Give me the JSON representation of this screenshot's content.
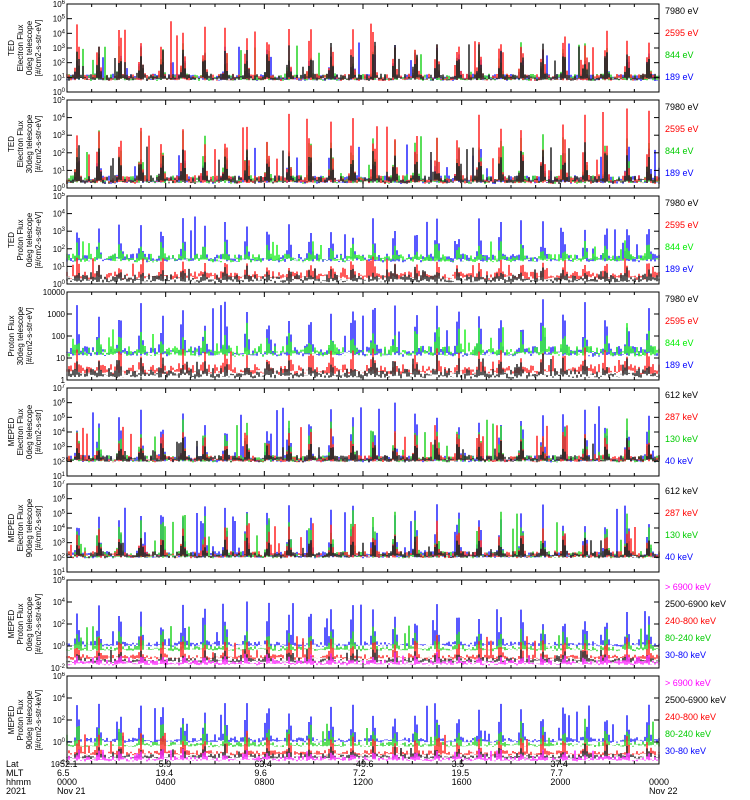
{
  "chart_data": [
    {
      "type": "line",
      "ylabel": [
        "TED",
        "Electron Flux",
        "0deg telescope",
        "[#/cm2-s-str-eV]"
      ],
      "ylim": [
        1,
        1000000
      ],
      "yscale": "log",
      "ytick_labels": [
        "10^0",
        "10^1",
        "10^2",
        "10^3",
        "10^4",
        "10^5",
        "10^6"
      ],
      "series": [
        {
          "name": "7980 eV",
          "color": "#000000",
          "baseline": 10,
          "peak": 3000
        },
        {
          "name": "2595 eV",
          "color": "#ff0000",
          "baseline": 10,
          "peak": 100000
        },
        {
          "name": "844 eV",
          "color": "#00cc00",
          "baseline": 10,
          "peak": 3000
        },
        {
          "name": "189 eV",
          "color": "#0000ff",
          "baseline": 10,
          "peak": 3000
        }
      ]
    },
    {
      "type": "line",
      "ylabel": [
        "TED",
        "Electron Flux",
        "30deg telescope",
        "[#/cm2-s-str-eV]"
      ],
      "ylim": [
        1,
        100000
      ],
      "yscale": "log",
      "ytick_labels": [
        "10^0",
        "10^1",
        "10^2",
        "10^3",
        "10^4",
        "10^5"
      ],
      "series": [
        {
          "name": "7980 eV",
          "color": "#000000",
          "baseline": 3,
          "peak": 300
        },
        {
          "name": "2595 eV",
          "color": "#ff0000",
          "baseline": 3,
          "peak": 30000
        },
        {
          "name": "844 eV",
          "color": "#00cc00",
          "baseline": 3,
          "peak": 3000
        },
        {
          "name": "189 eV",
          "color": "#0000ff",
          "baseline": 3,
          "peak": 300
        }
      ]
    },
    {
      "type": "line",
      "ylabel": [
        "TED",
        "Proton Flux",
        "0deg telescope",
        "[#/cm2-s-str-eV]"
      ],
      "ylim": [
        1,
        100000
      ],
      "yscale": "log",
      "ytick_labels": [
        "10^0",
        "10^1",
        "10^2",
        "10^3",
        "10^4",
        "10^5"
      ],
      "series": [
        {
          "name": "7980 eV",
          "color": "#000000",
          "baseline": 2,
          "peak": 10
        },
        {
          "name": "2595 eV",
          "color": "#ff0000",
          "baseline": 3,
          "peak": 30
        },
        {
          "name": "844 eV",
          "color": "#00ee00",
          "baseline": 30,
          "peak": 300
        },
        {
          "name": "189 eV",
          "color": "#0000ff",
          "baseline": 30,
          "peak": 10000
        }
      ]
    },
    {
      "type": "line",
      "ylabel": [
        "Proton Flux",
        "30deg telescope",
        "[#/cm2-s-str-eV]"
      ],
      "ylim": [
        1,
        10000
      ],
      "yscale": "log",
      "ytick_labels": [
        "1",
        "10",
        "100",
        "1000",
        "10000"
      ],
      "series": [
        {
          "name": "7980 eV",
          "color": "#000000",
          "baseline": 2,
          "peak": 10
        },
        {
          "name": "2595 eV",
          "color": "#ff0000",
          "baseline": 3,
          "peak": 30
        },
        {
          "name": "844 eV",
          "color": "#00ee00",
          "baseline": 20,
          "peak": 300
        },
        {
          "name": "189 eV",
          "color": "#0000ff",
          "baseline": 20,
          "peak": 5000
        }
      ]
    },
    {
      "type": "line",
      "ylabel": [
        "MEPED",
        "Electron Flux",
        "0deg telescope",
        "[#/cm2-s-str]"
      ],
      "ylim": [
        10,
        10000000
      ],
      "yscale": "log",
      "ytick_labels": [
        "10^1",
        "10^2",
        "10^3",
        "10^4",
        "10^5",
        "10^6",
        "10^7"
      ],
      "series": [
        {
          "name": "612 keV",
          "color": "#000000",
          "baseline": 150,
          "peak": 3000
        },
        {
          "name": "287 keV",
          "color": "#ff0000",
          "baseline": 150,
          "peak": 30000
        },
        {
          "name": "130 keV",
          "color": "#00cc00",
          "baseline": 150,
          "peak": 100000
        },
        {
          "name": "40 keV",
          "color": "#0000ff",
          "baseline": 150,
          "peak": 1000000
        }
      ]
    },
    {
      "type": "line",
      "ylabel": [
        "MEPED",
        "Electron Flux",
        "90deg telescope",
        "[#/cm2-s-str]"
      ],
      "ylim": [
        10,
        10000000
      ],
      "yscale": "log",
      "ytick_labels": [
        "10^1",
        "10^2",
        "10^3",
        "10^4",
        "10^5",
        "10^6",
        "10^7"
      ],
      "series": [
        {
          "name": "612 keV",
          "color": "#000000",
          "baseline": 150,
          "peak": 3000
        },
        {
          "name": "287 keV",
          "color": "#ff0000",
          "baseline": 150,
          "peak": 30000
        },
        {
          "name": "130 keV",
          "color": "#00cc00",
          "baseline": 150,
          "peak": 300000
        },
        {
          "name": "40 keV",
          "color": "#0000ff",
          "baseline": 150,
          "peak": 1000000
        }
      ]
    },
    {
      "type": "line",
      "ylabel": [
        "MEPED",
        "Proton Flux",
        "0deg telescope",
        "[#/cm2-s-str-keV]"
      ],
      "ylim": [
        0.01,
        1000000
      ],
      "yscale": "log",
      "ytick_labels": [
        "10^-2",
        "10^0",
        "10^2",
        "10^4",
        "10^6"
      ],
      "series": [
        {
          "name": "> 6900 keV",
          "color": "#ff00ff",
          "baseline": 0.03,
          "peak": 0.2
        },
        {
          "name": "2500-6900 keV",
          "color": "#000000",
          "baseline": 0.05,
          "peak": 0.5
        },
        {
          "name": "240-800 keV",
          "color": "#ff0000",
          "baseline": 0.1,
          "peak": 10
        },
        {
          "name": "80-240 keV",
          "color": "#00cc00",
          "baseline": 0.6,
          "peak": 100
        },
        {
          "name": "30-80 keV",
          "color": "#0000ff",
          "baseline": 1.5,
          "peak": 10000
        }
      ]
    },
    {
      "type": "line",
      "ylabel": [
        "MEPED",
        "Proton Flux",
        "90deg telescope",
        "[#/cm2-s-str-keV]"
      ],
      "ylim": [
        0.01,
        1000000
      ],
      "yscale": "log",
      "ytick_labels": [
        "10^-2",
        "10^0",
        "10^2",
        "10^4",
        "10^6"
      ],
      "series": [
        {
          "name": "> 6900 keV",
          "color": "#ff00ff",
          "baseline": 0.03,
          "peak": 0.2
        },
        {
          "name": "2500-6900 keV",
          "color": "#000000",
          "baseline": 0.05,
          "peak": 0.5
        },
        {
          "name": "240-800 keV",
          "color": "#ff0000",
          "baseline": 0.1,
          "peak": 10
        },
        {
          "name": "80-240 keV",
          "color": "#00cc00",
          "baseline": 0.6,
          "peak": 100
        },
        {
          "name": "30-80 keV",
          "color": "#0000ff",
          "baseline": 1.5,
          "peak": 10000
        }
      ]
    }
  ],
  "footer": {
    "row_labels": [
      "Lat",
      "MLT",
      "hhmm",
      "2021"
    ],
    "columns": [
      {
        "lat": "-52.1",
        "mlt": "6.5",
        "hhmm": "0000",
        "date": "Nov 21"
      },
      {
        "lat": "-5.9",
        "mlt": "19.4",
        "hhmm": "0400",
        "date": ""
      },
      {
        "lat": "63.4",
        "mlt": "9.6",
        "hhmm": "0800",
        "date": ""
      },
      {
        "lat": "-49.6",
        "mlt": "7.2",
        "hhmm": "1200",
        "date": ""
      },
      {
        "lat": "3.5",
        "mlt": "19.5",
        "hhmm": "1600",
        "date": ""
      },
      {
        "lat": "37.4",
        "mlt": "7.7",
        "hhmm": "2000",
        "date": ""
      },
      {
        "lat": "",
        "mlt": "",
        "hhmm": "0000",
        "date": "Nov 22"
      }
    ]
  }
}
